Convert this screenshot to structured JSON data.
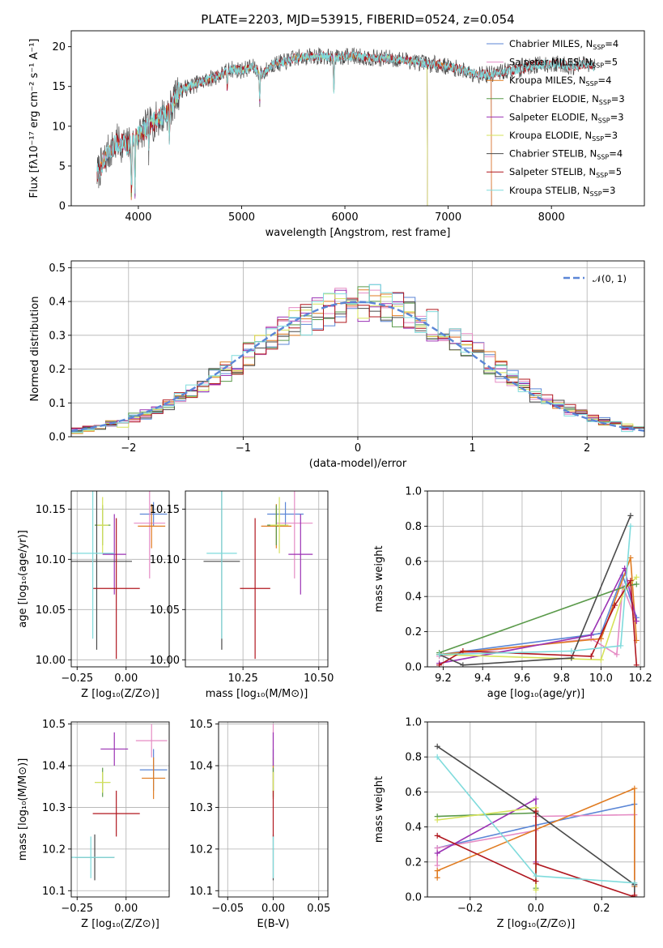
{
  "colors": {
    "Chabrier MILES": "#5b86d6",
    "Salpeter MILES": "#e58bc4",
    "Kroupa MILES": "#e07b20",
    "Chabrier ELODIE": "#5a9a4a",
    "Salpeter ELODIE": "#9b32b4",
    "Kroupa ELODIE": "#d6e25a",
    "Chabrier STELIB": "#4a4a4a",
    "Salpeter STELIB": "#b0171f",
    "Kroupa STELIB": "#7fdbdc",
    "normal_curve": "#5b86d6"
  },
  "chart_data": [
    {
      "id": "spectrum",
      "type": "line",
      "title": "PLATE=2203, MJD=53915, FIBERID=0524, z=0.054",
      "xlabel": "wavelength [Angstrom, rest frame]",
      "ylabel": "Flux [fλ10⁻¹⁷ erg cm⁻² s⁻¹ A⁻¹]",
      "xlim": [
        3350,
        8900
      ],
      "ylim": [
        0,
        22
      ],
      "xticks": [
        "4000",
        "5000",
        "6000",
        "7000",
        "8000"
      ],
      "yticks": [
        "0",
        "5",
        "10",
        "15",
        "20"
      ],
      "grid": false,
      "legend_position": "right",
      "legend": [
        {
          "label": "Chabrier MILES, N",
          "sub": "SSP",
          "suffix": "=4"
        },
        {
          "label": "Salpeter MILES, N",
          "sub": "SSP",
          "suffix": "=5"
        },
        {
          "label": "Kroupa MILES, N",
          "sub": "SSP",
          "suffix": "=4"
        },
        {
          "label": "Chabrier ELODIE, N",
          "sub": "SSP",
          "suffix": "=3"
        },
        {
          "label": "Salpeter ELODIE, N",
          "sub": "SSP",
          "suffix": "=3"
        },
        {
          "label": "Kroupa ELODIE, N",
          "sub": "SSP",
          "suffix": "=3"
        },
        {
          "label": "Chabrier STELIB, N",
          "sub": "SSP",
          "suffix": "=4"
        },
        {
          "label": "Salpeter STELIB, N",
          "sub": "SSP",
          "suffix": "=5"
        },
        {
          "label": "Kroupa STELIB, N",
          "sub": "SSP",
          "suffix": "=3"
        }
      ],
      "continuum": [
        [
          3600,
          4.0
        ],
        [
          3700,
          6.5
        ],
        [
          3800,
          8.0
        ],
        [
          3900,
          7.5
        ],
        [
          4000,
          9.0
        ],
        [
          4100,
          10.0
        ],
        [
          4200,
          11.0
        ],
        [
          4300,
          12.0
        ],
        [
          4400,
          14.5
        ],
        [
          4500,
          15.0
        ],
        [
          4600,
          15.5
        ],
        [
          4700,
          16.0
        ],
        [
          4800,
          16.5
        ],
        [
          4900,
          17.2
        ],
        [
          5000,
          17.0
        ],
        [
          5100,
          17.5
        ],
        [
          5200,
          16.5
        ],
        [
          5300,
          17.8
        ],
        [
          5400,
          18.0
        ],
        [
          5500,
          18.5
        ],
        [
          5600,
          18.7
        ],
        [
          5700,
          18.8
        ],
        [
          5800,
          18.8
        ],
        [
          5900,
          18.5
        ],
        [
          6000,
          18.8
        ],
        [
          6100,
          18.8
        ],
        [
          6200,
          18.7
        ],
        [
          6300,
          18.5
        ],
        [
          6400,
          18.6
        ],
        [
          6500,
          18.4
        ],
        [
          6600,
          18.3
        ],
        [
          6700,
          18.1
        ],
        [
          6800,
          17.8
        ],
        [
          6900,
          17.8
        ],
        [
          7000,
          17.5
        ],
        [
          7100,
          17.2
        ],
        [
          7200,
          16.8
        ],
        [
          7300,
          16.5
        ],
        [
          7400,
          16.5
        ],
        [
          7500,
          16.8
        ],
        [
          7600,
          17.0
        ],
        [
          7700,
          17.2
        ],
        [
          7800,
          17.6
        ],
        [
          7900,
          17.8
        ],
        [
          8000,
          17.8
        ],
        [
          8100,
          17.8
        ],
        [
          8200,
          17.5
        ],
        [
          8300,
          17.8
        ],
        [
          8400,
          17.5
        ]
      ],
      "absorption_features": [
        {
          "x": 3933,
          "depth": 7.5
        },
        {
          "x": 3968,
          "depth": 7.0
        },
        {
          "x": 4101,
          "depth": 3.0
        },
        {
          "x": 4300,
          "depth": 3.5
        },
        {
          "x": 4861,
          "depth": 2.5
        },
        {
          "x": 5175,
          "depth": 4.0
        },
        {
          "x": 5893,
          "depth": 4.5
        },
        {
          "x": 6800,
          "depth": 18.0
        },
        {
          "x": 7420,
          "depth": 17.0
        }
      ]
    },
    {
      "id": "residuals",
      "type": "histogram",
      "xlabel": "(data-model)/error",
      "ylabel": "Normed distribution",
      "xlim": [
        -2.5,
        2.5
      ],
      "ylim": [
        0,
        0.52
      ],
      "xticks": [
        "−2",
        "−1",
        "0",
        "1",
        "2"
      ],
      "yticks": [
        "0.0",
        "0.1",
        "0.2",
        "0.3",
        "0.4",
        "0.5"
      ],
      "grid": true,
      "legend_position": "top-right",
      "legend_label": "𝒩(0, 1)",
      "bin_width": 0.1
    },
    {
      "id": "age_vs_Z",
      "type": "errorbar",
      "xlabel": "Z [log₁₀(Z/Z⊙)]",
      "ylabel": "age  [log₁₀(age/yr)]",
      "xlim": [
        -0.28,
        0.22
      ],
      "ylim": [
        9.993,
        10.168
      ],
      "xticks": [
        "−0.25",
        "0.00"
      ],
      "yticks": [
        "10.00",
        "10.05",
        "10.10",
        "10.15"
      ],
      "grid": true,
      "points": [
        {
          "ssp": "Chabrier MILES",
          "x": 0.14,
          "xerr": 0.07,
          "y": 10.145,
          "yerr": 0.012
        },
        {
          "ssp": "Salpeter MILES",
          "x": 0.12,
          "xerr": 0.08,
          "y": 10.136,
          "yerr": 0.055
        },
        {
          "ssp": "Kroupa MILES",
          "x": 0.13,
          "xerr": 0.07,
          "y": 10.133,
          "yerr": 0.022
        },
        {
          "ssp": "Chabrier ELODIE",
          "x": -0.12,
          "xerr": 0.04,
          "y": 10.134,
          "yerr": 0.02
        },
        {
          "ssp": "Salpeter ELODIE",
          "x": -0.06,
          "xerr": 0.06,
          "y": 10.105,
          "yerr": 0.04
        },
        {
          "ssp": "Kroupa ELODIE",
          "x": -0.12,
          "xerr": 0.03,
          "y": 10.134,
          "yerr": 0.028
        },
        {
          "ssp": "Chabrier STELIB",
          "x": -0.15,
          "xerr": 0.18,
          "y": 10.098,
          "yerr": 0.088
        },
        {
          "ssp": "Salpeter STELIB",
          "x": -0.05,
          "xerr": 0.12,
          "y": 10.071,
          "yerr": 0.07
        },
        {
          "ssp": "Kroupa STELIB",
          "x": -0.17,
          "xerr": 0.11,
          "y": 10.106,
          "yerr": 0.085
        }
      ]
    },
    {
      "id": "age_vs_mass",
      "type": "errorbar",
      "xlabel": "mass [log₁₀(M/M⊙)]",
      "ylabel": "",
      "xlim": [
        10.06,
        10.53
      ],
      "ylim": [
        9.993,
        10.168
      ],
      "xticks": [
        "10.25",
        "10.50"
      ],
      "yticks": [
        "10.00",
        "10.05",
        "10.10",
        "10.15"
      ],
      "grid": true,
      "points": [
        {
          "ssp": "Chabrier MILES",
          "x": 10.39,
          "xerr": 0.06,
          "y": 10.145,
          "yerr": 0.012
        },
        {
          "ssp": "Salpeter MILES",
          "x": 10.42,
          "xerr": 0.06,
          "y": 10.136,
          "yerr": 0.055
        },
        {
          "ssp": "Kroupa MILES",
          "x": 10.36,
          "xerr": 0.05,
          "y": 10.133,
          "yerr": 0.022
        },
        {
          "ssp": "Chabrier ELODIE",
          "x": 10.36,
          "xerr": 0.03,
          "y": 10.134,
          "yerr": 0.02
        },
        {
          "ssp": "Salpeter ELODIE",
          "x": 10.44,
          "xerr": 0.04,
          "y": 10.105,
          "yerr": 0.04
        },
        {
          "ssp": "Kroupa ELODIE",
          "x": 10.37,
          "xerr": 0.03,
          "y": 10.134,
          "yerr": 0.028
        },
        {
          "ssp": "Chabrier STELIB",
          "x": 10.18,
          "xerr": 0.06,
          "y": 10.098,
          "yerr": 0.088
        },
        {
          "ssp": "Salpeter STELIB",
          "x": 10.29,
          "xerr": 0.05,
          "y": 10.071,
          "yerr": 0.07
        },
        {
          "ssp": "Kroupa STELIB",
          "x": 10.18,
          "xerr": 0.05,
          "y": 10.106,
          "yerr": 0.085
        }
      ]
    },
    {
      "id": "weight_vs_age",
      "type": "line",
      "xlabel": "age  [log₁₀(age/yr)]",
      "ylabel": "mass weight",
      "xlim": [
        9.12,
        10.22
      ],
      "ylim": [
        0,
        1.0
      ],
      "xticks": [
        "9.2",
        "9.4",
        "9.6",
        "9.8",
        "10.0",
        "10.2"
      ],
      "yticks": [
        "0.0",
        "0.2",
        "0.4",
        "0.6",
        "0.8",
        "1.0"
      ],
      "grid": true,
      "series": [
        {
          "ssp": "Chabrier MILES",
          "x": [
            9.18,
            10.0,
            10.11,
            10.18
          ],
          "y": [
            0.07,
            0.19,
            0.52,
            0.28
          ]
        },
        {
          "ssp": "Salpeter MILES",
          "x": [
            9.18,
            9.95,
            10.08,
            10.11,
            10.18
          ],
          "y": [
            0.06,
            0.16,
            0.07,
            0.46,
            0.26
          ]
        },
        {
          "ssp": "Kroupa MILES",
          "x": [
            9.18,
            10.0,
            10.15,
            10.18
          ],
          "y": [
            0.07,
            0.16,
            0.62,
            0.15
          ]
        },
        {
          "ssp": "Chabrier ELODIE",
          "x": [
            9.18,
            10.13,
            10.18
          ],
          "y": [
            0.08,
            0.46,
            0.47
          ]
        },
        {
          "ssp": "Salpeter ELODIE",
          "x": [
            9.18,
            9.95,
            10.12,
            10.18
          ],
          "y": [
            0.02,
            0.18,
            0.56,
            0.26
          ]
        },
        {
          "ssp": "Kroupa ELODIE",
          "x": [
            9.18,
            10.0,
            10.12,
            10.18
          ],
          "y": [
            0.07,
            0.04,
            0.44,
            0.51
          ]
        },
        {
          "ssp": "Chabrier STELIB",
          "x": [
            9.18,
            9.3,
            9.85,
            10.15
          ],
          "y": [
            0.07,
            0.01,
            0.05,
            0.86
          ]
        },
        {
          "ssp": "Salpeter STELIB",
          "x": [
            9.18,
            9.3,
            9.95,
            10.07,
            10.15,
            10.18
          ],
          "y": [
            0.01,
            0.09,
            0.06,
            0.35,
            0.49,
            0.01
          ]
        },
        {
          "ssp": "Kroupa STELIB",
          "x": [
            9.18,
            9.85,
            10.1,
            10.15
          ],
          "y": [
            0.07,
            0.09,
            0.12,
            0.8
          ]
        }
      ]
    },
    {
      "id": "mass_vs_Z",
      "type": "errorbar",
      "xlabel": "Z [log₁₀(Z/Z⊙)]",
      "ylabel": "mass [log₁₀(M/M⊙)]",
      "xlim": [
        -0.28,
        0.22
      ],
      "ylim": [
        10.085,
        10.505
      ],
      "xticks": [
        "−0.25",
        "0.00"
      ],
      "yticks": [
        "10.1",
        "10.2",
        "10.3",
        "10.4",
        "10.5"
      ],
      "grid": true,
      "points": [
        {
          "ssp": "Chabrier MILES",
          "x": 0.14,
          "xerr": 0.07,
          "y": 10.39,
          "yerr": 0.05
        },
        {
          "ssp": "Salpeter MILES",
          "x": 0.13,
          "xerr": 0.08,
          "y": 10.46,
          "yerr": 0.04
        },
        {
          "ssp": "Kroupa MILES",
          "x": 0.14,
          "xerr": 0.06,
          "y": 10.37,
          "yerr": 0.05
        },
        {
          "ssp": "Chabrier ELODIE",
          "x": -0.12,
          "xerr": 0.04,
          "y": 10.36,
          "yerr": 0.035
        },
        {
          "ssp": "Salpeter ELODIE",
          "x": -0.06,
          "xerr": 0.07,
          "y": 10.44,
          "yerr": 0.04
        },
        {
          "ssp": "Kroupa ELODIE",
          "x": -0.12,
          "xerr": 0.04,
          "y": 10.36,
          "yerr": 0.025
        },
        {
          "ssp": "Chabrier STELIB",
          "x": -0.16,
          "xerr": 0.1,
          "y": 10.18,
          "yerr": 0.055
        },
        {
          "ssp": "Salpeter STELIB",
          "x": -0.05,
          "xerr": 0.12,
          "y": 10.285,
          "yerr": 0.055
        },
        {
          "ssp": "Kroupa STELIB",
          "x": -0.18,
          "xerr": 0.12,
          "y": 10.18,
          "yerr": 0.05
        }
      ]
    },
    {
      "id": "mass_vs_EBV",
      "type": "errorbar",
      "xlabel": "E(B-V)",
      "ylabel": "",
      "xlim": [
        -0.06,
        0.06
      ],
      "ylim": [
        10.085,
        10.505
      ],
      "xticks": [
        "−0.05",
        "0.00",
        "0.05"
      ],
      "yticks": [
        "10.1",
        "10.2",
        "10.3",
        "10.4",
        "10.5"
      ],
      "grid": true,
      "points": [
        {
          "ssp": "Chabrier MILES",
          "x": 0.0,
          "xerr": 0.0,
          "y": 10.39,
          "yerr": 0.05
        },
        {
          "ssp": "Salpeter MILES",
          "x": 0.0,
          "xerr": 0.0,
          "y": 10.46,
          "yerr": 0.04
        },
        {
          "ssp": "Kroupa MILES",
          "x": 0.0,
          "xerr": 0.0,
          "y": 10.37,
          "yerr": 0.05
        },
        {
          "ssp": "Chabrier ELODIE",
          "x": 0.0,
          "xerr": 0.0,
          "y": 10.36,
          "yerr": 0.035
        },
        {
          "ssp": "Salpeter ELODIE",
          "x": 0.0,
          "xerr": 0.0,
          "y": 10.44,
          "yerr": 0.04
        },
        {
          "ssp": "Kroupa ELODIE",
          "x": 0.0,
          "xerr": 0.0,
          "y": 10.36,
          "yerr": 0.025
        },
        {
          "ssp": "Chabrier STELIB",
          "x": 0.0,
          "xerr": 0.0,
          "y": 10.18,
          "yerr": 0.055
        },
        {
          "ssp": "Salpeter STELIB",
          "x": 0.0,
          "xerr": 0.0,
          "y": 10.285,
          "yerr": 0.055
        },
        {
          "ssp": "Kroupa STELIB",
          "x": 0.0,
          "xerr": 0.0,
          "y": 10.18,
          "yerr": 0.05
        }
      ]
    },
    {
      "id": "weight_vs_Z",
      "type": "line",
      "xlabel": "Z [log₁₀(Z/Z⊙)]",
      "ylabel": "mass weight",
      "xlim": [
        -0.33,
        0.33
      ],
      "ylim": [
        0,
        1.0
      ],
      "xticks": [
        "−0.2",
        "0.0",
        "0.2"
      ],
      "yticks": [
        "0.0",
        "0.2",
        "0.4",
        "0.6",
        "0.8",
        "1.0"
      ],
      "grid": true,
      "series": [
        {
          "ssp": "Chabrier MILES",
          "x": [
            -0.3,
            0.0,
            0.3,
            0.3
          ],
          "y": [
            0.28,
            0.41,
            0.53,
            0.06
          ]
        },
        {
          "ssp": "Salpeter MILES",
          "x": [
            -0.3,
            -0.3,
            0.0,
            0.0,
            0.3,
            0.3
          ],
          "y": [
            0.18,
            0.28,
            0.38,
            0.46,
            0.47,
            0.07
          ]
        },
        {
          "ssp": "Kroupa MILES",
          "x": [
            -0.3,
            -0.3,
            0.3,
            0.3
          ],
          "y": [
            0.11,
            0.15,
            0.62,
            0.06
          ]
        },
        {
          "ssp": "Chabrier ELODIE",
          "x": [
            -0.3,
            0.0,
            0.0
          ],
          "y": [
            0.46,
            0.48,
            0.05
          ]
        },
        {
          "ssp": "Salpeter ELODIE",
          "x": [
            -0.3,
            0.0,
            0.0
          ],
          "y": [
            0.25,
            0.56,
            0.2
          ]
        },
        {
          "ssp": "Kroupa ELODIE",
          "x": [
            -0.3,
            0.0,
            0.0
          ],
          "y": [
            0.44,
            0.51,
            0.04
          ]
        },
        {
          "ssp": "Chabrier STELIB",
          "x": [
            -0.3,
            0.0,
            0.3,
            0.3
          ],
          "y": [
            0.86,
            0.48,
            0.07,
            0.0
          ]
        },
        {
          "ssp": "Salpeter STELIB",
          "x": [
            -0.3,
            0.0,
            0.0,
            0.0,
            0.3,
            0.3
          ],
          "y": [
            0.35,
            0.09,
            0.49,
            0.19,
            0.0,
            0.01
          ]
        },
        {
          "ssp": "Kroupa STELIB",
          "x": [
            -0.3,
            0.0,
            0.3
          ],
          "y": [
            0.8,
            0.12,
            0.08
          ]
        }
      ]
    }
  ]
}
